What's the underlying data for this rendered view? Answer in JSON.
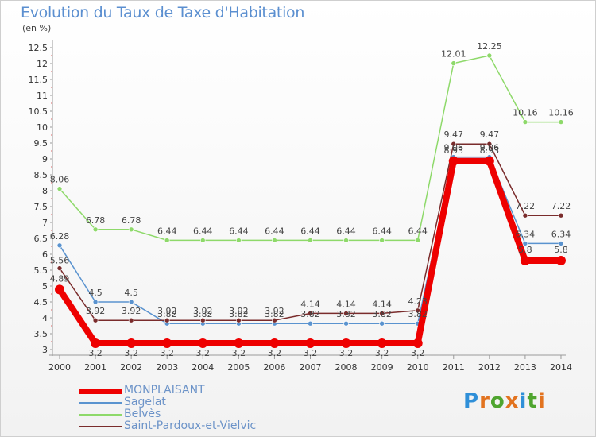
{
  "header": {
    "title": "Evolution du Taux de Taxe d'Habitation",
    "unit": "(en %)"
  },
  "logo": {
    "letters": [
      "P",
      "r",
      "o",
      "x",
      "i",
      "t",
      "i"
    ],
    "colors": [
      "#2f8fd8",
      "#e2731f",
      "#4fa52f",
      "#e2731f",
      "#2f8fd8",
      "#4fa52f",
      "#e2731f"
    ]
  },
  "chart_data": {
    "type": "line",
    "title": "Evolution du Taux de Taxe d'Habitation",
    "ylabel": "(en %)",
    "xlabel": "",
    "ylim": [
      3,
      12.5
    ],
    "y_ticks": [
      "3",
      "3.5",
      "4",
      "4.5",
      "5",
      "5.5",
      "6",
      "6.5",
      "7",
      "7.5",
      "8",
      "8.5",
      "9",
      "9.5",
      "10",
      "10.5",
      "11",
      "11.5",
      "12",
      "12.5"
    ],
    "categories": [
      "2000",
      "2001",
      "2002",
      "2003",
      "2004",
      "2005",
      "2006",
      "2007",
      "2008",
      "2009",
      "2010",
      "2011",
      "2012",
      "2013",
      "2014"
    ],
    "grid": false,
    "legend_position": "bottom-left",
    "series": [
      {
        "name": "MONPLAISANT",
        "color": "#ee0000",
        "values": [
          4.89,
          3.2,
          3.2,
          3.2,
          3.2,
          3.2,
          3.2,
          3.2,
          3.2,
          3.2,
          3.2,
          8.93,
          8.93,
          5.8,
          5.8
        ],
        "labels": [
          "4.89",
          "3.2",
          "3.2",
          "3.2",
          "3.2",
          "3.2",
          "3.2",
          "3.2",
          "3.2",
          "3.2",
          "3.2",
          "8.93",
          "8.93",
          "5.8",
          "5.8"
        ]
      },
      {
        "name": "Sagelat",
        "color": "#5a93cf",
        "values": [
          6.28,
          4.5,
          4.5,
          3.82,
          3.82,
          3.82,
          3.82,
          3.82,
          3.82,
          3.82,
          3.82,
          9.06,
          9.06,
          6.34,
          6.34
        ],
        "labels": [
          "6.28",
          "4.5",
          "4.5",
          "3.82",
          "3.82",
          "3.82",
          "3.82",
          "3.82",
          "3.82",
          "3.82",
          "3.82",
          "9.06",
          "9.06",
          "6.34",
          "6.34"
        ]
      },
      {
        "name": "Belvès",
        "color": "#8ed96a",
        "values": [
          8.06,
          6.78,
          6.78,
          6.44,
          6.44,
          6.44,
          6.44,
          6.44,
          6.44,
          6.44,
          6.44,
          12.01,
          12.25,
          10.16,
          10.16
        ],
        "labels": [
          "8.06",
          "6.78",
          "6.78",
          "6.44",
          "6.44",
          "6.44",
          "6.44",
          "6.44",
          "6.44",
          "6.44",
          "6.44",
          "12.01",
          "12.25",
          "10.16",
          "10.16"
        ]
      },
      {
        "name": "Saint-Pardoux-et-Vielvic",
        "color": "#7a2c2c",
        "values": [
          5.56,
          3.92,
          3.92,
          3.92,
          3.92,
          3.92,
          3.92,
          4.14,
          4.14,
          4.14,
          4.23,
          9.47,
          9.47,
          7.22,
          7.22
        ],
        "labels": [
          "5.56",
          "3.92",
          "3.92",
          "3.92",
          "3.92",
          "3.92",
          "3.92",
          "4.14",
          "4.14",
          "4.14",
          "4.23",
          "9.47",
          "9.47",
          "7.22",
          "7.22"
        ]
      }
    ]
  }
}
